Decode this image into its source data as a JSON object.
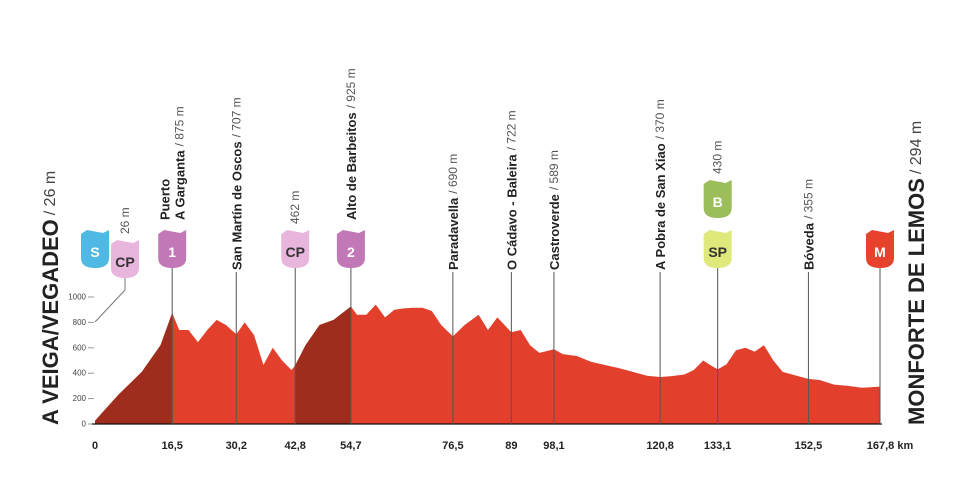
{
  "chart_data": {
    "type": "area",
    "color": "#e2402c",
    "shade_color": "#9e2d1d",
    "xlim": [
      0,
      167.8
    ],
    "ylim": [
      0,
      1000
    ],
    "yticks": [
      0,
      200,
      400,
      600,
      800,
      1000
    ],
    "x": [
      0,
      5,
      10,
      14,
      16.5,
      18,
      20,
      22,
      24,
      26,
      28,
      30.2,
      32,
      34,
      36,
      38,
      40,
      42,
      42.8,
      45,
      48,
      51,
      54.7,
      56,
      58,
      60,
      62,
      64,
      66,
      68,
      70,
      72,
      74,
      76.5,
      79,
      82,
      84,
      86,
      89,
      91,
      93,
      95,
      98.1,
      100,
      103,
      106,
      109,
      112,
      115,
      118,
      120.8,
      123,
      126,
      128,
      130,
      131.5,
      133.1,
      135,
      137,
      139,
      141,
      143,
      145,
      147,
      150,
      152.5,
      155,
      158,
      161,
      164,
      167.8
    ],
    "values": [
      26,
      230,
      410,
      620,
      875,
      740,
      740,
      645,
      740,
      820,
      780,
      707,
      800,
      700,
      465,
      600,
      500,
      425,
      462,
      620,
      780,
      820,
      925,
      860,
      860,
      940,
      840,
      900,
      910,
      915,
      915,
      890,
      780,
      690,
      780,
      860,
      740,
      840,
      722,
      740,
      620,
      560,
      589,
      550,
      535,
      490,
      465,
      440,
      410,
      380,
      370,
      376,
      390,
      425,
      500,
      465,
      430,
      470,
      580,
      600,
      570,
      620,
      500,
      410,
      380,
      355,
      345,
      310,
      300,
      285,
      294
    ],
    "shaded": [
      {
        "from": 0,
        "to": 16.5
      },
      {
        "from": 42.8,
        "to": 54.7
      }
    ],
    "start": {
      "name": "A VEIGA/VEGADEO",
      "elevation": "/ 26 m"
    },
    "finish": {
      "name": "MONFORTE DE LEMOS",
      "elevation": "/ 294 m"
    },
    "markers": [
      {
        "km": 0,
        "elevation": "26 m",
        "badges": [
          {
            "text": "S",
            "color": "#4fb9e3",
            "text_color": "#ffffff"
          },
          {
            "text": "CP",
            "color": "#e8b6dc",
            "text_color": "#333333"
          }
        ]
      },
      {
        "km": {
          "value": 16.5,
          "label": "16,5"
        },
        "name": [
          "Puerto",
          "A Garganta"
        ],
        "elevation": "/ 875 m",
        "badges": [
          {
            "text": "1",
            "color": "#c278b6",
            "text_color": "#ffffff"
          }
        ]
      },
      {
        "km": {
          "value": 30.2,
          "label": "30,2"
        },
        "name": [
          "San Martín de Oscos"
        ],
        "elevation": "/ 707 m",
        "badges": []
      },
      {
        "km": {
          "value": 42.8,
          "label": "42,8"
        },
        "elevation": "462 m",
        "badges": [
          {
            "text": "CP",
            "color": "#e8b6dc",
            "text_color": "#333333"
          }
        ]
      },
      {
        "km": {
          "value": 54.7,
          "label": "54,7"
        },
        "name": [
          "Alto de Barbeitos"
        ],
        "elevation": "/ 925 m",
        "badges": [
          {
            "text": "2",
            "color": "#c278b6",
            "text_color": "#ffffff"
          }
        ]
      },
      {
        "km": {
          "value": 76.5,
          "label": "76,5"
        },
        "name": [
          "Paradavella"
        ],
        "elevation": "/ 690 m",
        "badges": []
      },
      {
        "km": 89,
        "name": [
          "O Cádavo - Baleira"
        ],
        "elevation": "/ 722 m",
        "badges": []
      },
      {
        "km": {
          "value": 98.1,
          "label": "98,1"
        },
        "name": [
          "Castroverde"
        ],
        "elevation": "/ 589 m",
        "badges": []
      },
      {
        "km": {
          "value": 120.8,
          "label": "120,8"
        },
        "name": [
          "A Pobra de San Xiao"
        ],
        "elevation": "/ 370 m",
        "badges": []
      },
      {
        "km": {
          "value": 133.1,
          "label": "133,1"
        },
        "elevation": "430 m",
        "badges": [
          {
            "text": "B",
            "color": "#9bbd5a",
            "text_color": "#ffffff"
          },
          {
            "text": "SP",
            "color": "#dfe87a",
            "text_color": "#333333"
          }
        ]
      },
      {
        "km": {
          "value": 152.5,
          "label": "152,5"
        },
        "name": [
          "Bóveda"
        ],
        "elevation": "/ 355 m",
        "badges": []
      },
      {
        "km": {
          "value": 167.8,
          "label": "167,8 km"
        },
        "badges": [
          {
            "text": "M",
            "color": "#e8412c",
            "text_color": "#ffffff"
          }
        ]
      }
    ]
  }
}
